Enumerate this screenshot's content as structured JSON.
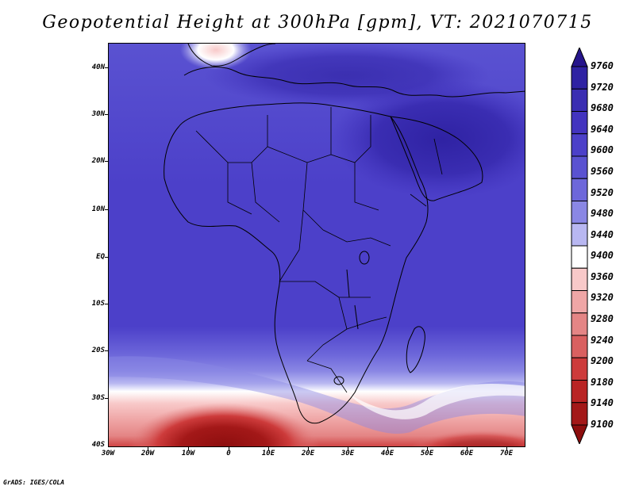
{
  "title": "Geopotential Height at 300hPa [gpm], VT: 2021070715",
  "credit": "GrADS: IGES/COLA",
  "map": {
    "lat_labels": [
      "40N",
      "30N",
      "20N",
      "10N",
      "EQ",
      "10S",
      "20S",
      "30S",
      "40S"
    ],
    "lon_labels": [
      "30W",
      "20W",
      "10W",
      "0",
      "10E",
      "20E",
      "30E",
      "40E",
      "50E",
      "60E",
      "70E"
    ]
  },
  "colorbar": {
    "levels": [
      "9760",
      "9720",
      "9680",
      "9640",
      "9600",
      "9560",
      "9520",
      "9480",
      "9440",
      "9400",
      "9360",
      "9320",
      "9280",
      "9240",
      "9200",
      "9180",
      "9140",
      "9100"
    ],
    "colors": [
      "#26158c",
      "#2f22a3",
      "#3a2db2",
      "#4334bf",
      "#4c40c9",
      "#5a52d1",
      "#6d67da",
      "#8a87e4",
      "#b8b7f1",
      "#ffffff",
      "#f8c9c9",
      "#efa6a6",
      "#e48585",
      "#d96060",
      "#cd3b3b",
      "#b92424",
      "#a31818",
      "#8d0e0e"
    ]
  }
}
